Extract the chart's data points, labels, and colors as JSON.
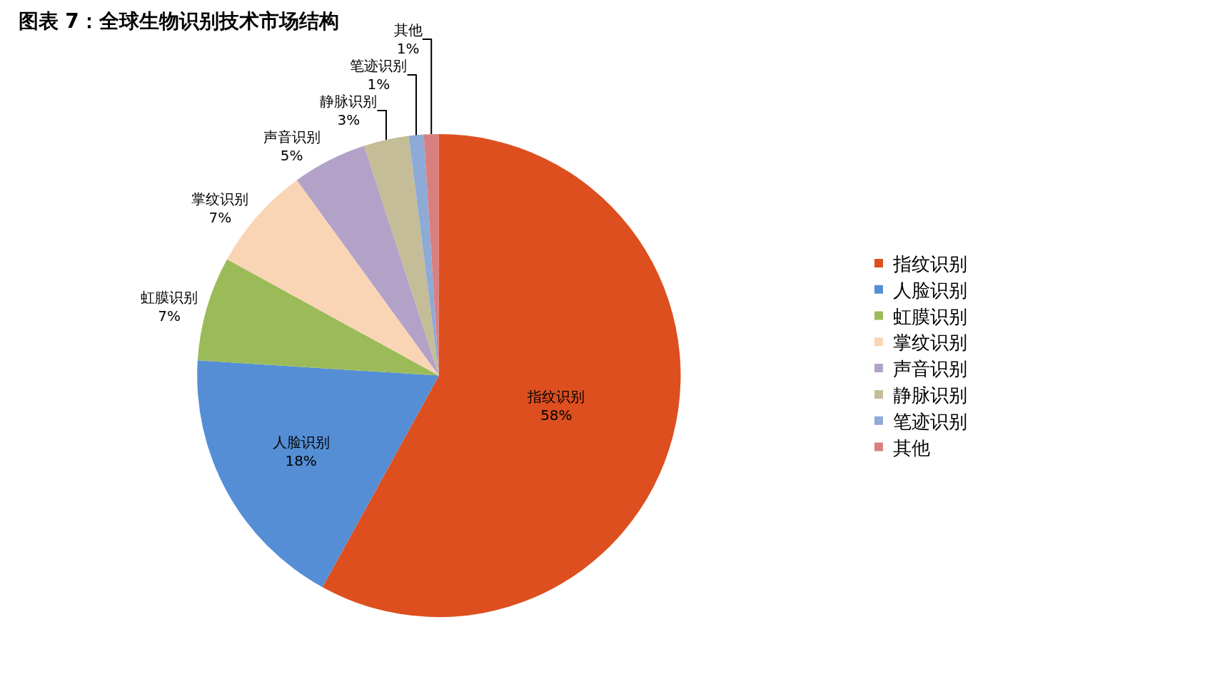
{
  "chart_data": {
    "type": "pie",
    "title": "图表 7：全球生物识别技术市场结构",
    "categories": [
      "指纹识别",
      "人脸识别",
      "虹膜识别",
      "掌纹识别",
      "声音识别",
      "静脉识别",
      "笔迹识别",
      "其他"
    ],
    "values": [
      58,
      18,
      7,
      7,
      5,
      3,
      1,
      1
    ],
    "value_labels": [
      "58%",
      "18%",
      "7%",
      "7%",
      "5%",
      "3%",
      "1%",
      "1%"
    ],
    "colors": [
      "#dd4f1f",
      "#558ed5",
      "#9bbb59",
      "#fad5b5",
      "#b3a2c7",
      "#c4bd97",
      "#8eaad6",
      "#d88080"
    ],
    "legend": "right"
  }
}
